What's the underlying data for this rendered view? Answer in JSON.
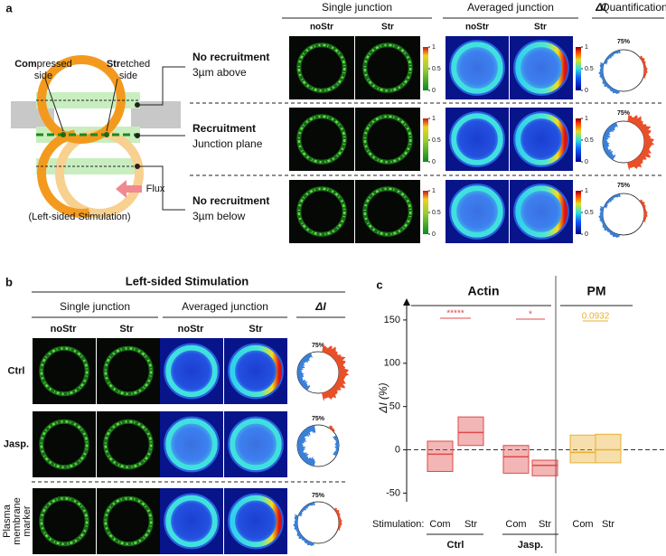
{
  "panel_a": {
    "label": "a",
    "headers": {
      "single": "Single junction",
      "averaged": "Averaged junction",
      "quant_symbol": "ΔI",
      "quant": "Quantification"
    },
    "conditions": [
      "noStr",
      "Str"
    ],
    "schematic": {
      "compressed_bold": "Com",
      "compressed_rest": "pressed",
      "compressed_line2": "side",
      "stretched_bold": "Str",
      "stretched_rest": "etched",
      "stretched_line2": "side",
      "flux": "Flux",
      "caption": "(Left-sided Stimulation)"
    },
    "rows": [
      {
        "title": "No recruitment",
        "subtitle": "3µm above",
        "percent": "75%"
      },
      {
        "title": "Recruitment",
        "subtitle": "Junction plane",
        "percent": "75%"
      },
      {
        "title": "No recruitment",
        "subtitle": "3µm below",
        "percent": "75%"
      }
    ],
    "colorbar_ticks": [
      1,
      0.5,
      0
    ]
  },
  "panel_b": {
    "label": "b",
    "title": "Left-sided Stimulation",
    "headers": {
      "single": "Single junction",
      "averaged": "Averaged junction",
      "quant": "ΔI"
    },
    "conditions": [
      "noStr",
      "Str"
    ],
    "rows": [
      {
        "label_lines": [
          "Ctrl"
        ],
        "percent": "75%"
      },
      {
        "label_lines": [
          "Jasp."
        ],
        "percent": "75%"
      },
      {
        "label_lines": [
          "Plasma",
          "membrane",
          "marker"
        ],
        "percent": "75%"
      }
    ]
  },
  "chart_data": {
    "type": "box",
    "label": "c",
    "ylabel": "ΔI (%)",
    "xlabel": "Stimulation:",
    "ylim": [
      -60,
      175
    ],
    "yticks": [
      -50,
      0,
      50,
      100,
      150
    ],
    "reference_line": 0,
    "sections": [
      {
        "name": "Actin",
        "color": "#e04848",
        "groups": [
          {
            "name": "Ctrl",
            "categories": [
              "Com",
              "Str"
            ],
            "q1": [
              -25,
              5
            ],
            "median": [
              -5,
              20
            ],
            "q3": [
              10,
              38
            ],
            "annotation": "*****"
          },
          {
            "name": "Jasp.",
            "categories": [
              "Com",
              "Str"
            ],
            "q1": [
              -27,
              -30
            ],
            "median": [
              -8,
              -18
            ],
            "q3": [
              5,
              -12
            ],
            "annotation": "*"
          }
        ]
      },
      {
        "name": "PM",
        "color": "#e8b030",
        "groups": [
          {
            "categories": [
              "Com",
              "Str"
            ],
            "q1": [
              -15,
              -15
            ],
            "median": [
              -3,
              0
            ],
            "q3": [
              17,
              18
            ],
            "annotation": "0.0932"
          }
        ]
      }
    ]
  }
}
